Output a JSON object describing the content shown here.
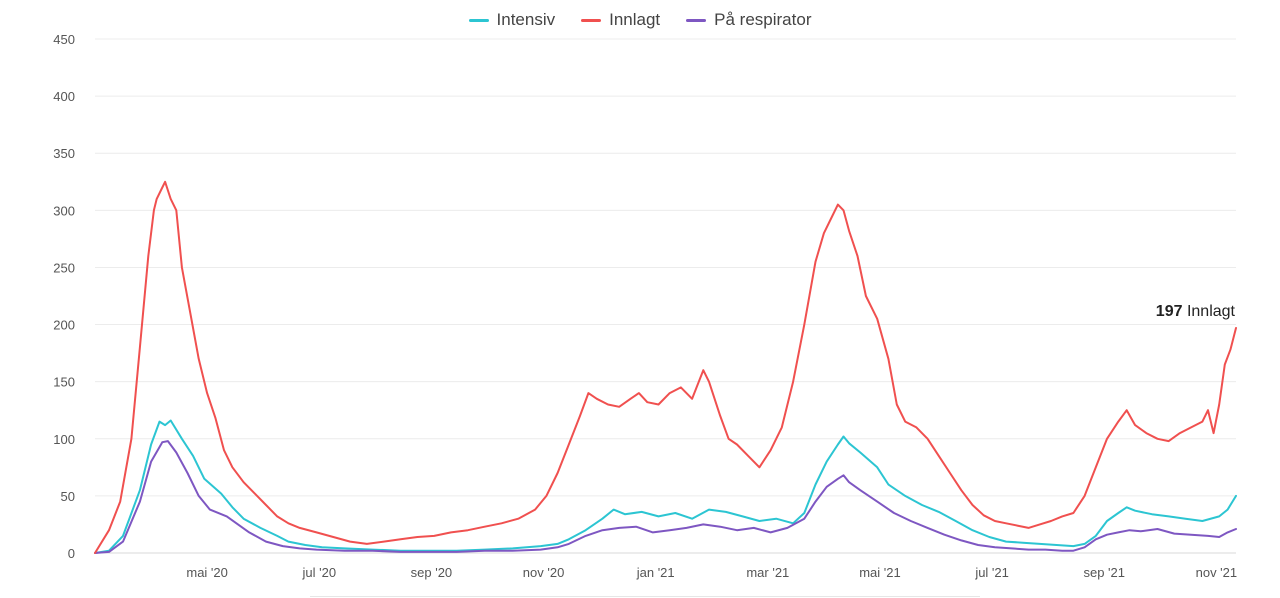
{
  "chart_data": {
    "type": "line",
    "title": "",
    "xlabel": "",
    "ylabel": "",
    "ylim": [
      0,
      450
    ],
    "yticks": [
      0,
      50,
      100,
      150,
      200,
      250,
      300,
      350,
      400,
      450
    ],
    "x_domain": [
      -0.45,
      19.9
    ],
    "x_ticks": [
      {
        "pos": 1.55,
        "label": "mai '20"
      },
      {
        "pos": 3.55,
        "label": "jul '20"
      },
      {
        "pos": 5.55,
        "label": "sep '20"
      },
      {
        "pos": 7.55,
        "label": "nov '20"
      },
      {
        "pos": 9.55,
        "label": "jan '21"
      },
      {
        "pos": 11.55,
        "label": "mar '21"
      },
      {
        "pos": 13.55,
        "label": "mai '21"
      },
      {
        "pos": 15.55,
        "label": "jul '21"
      },
      {
        "pos": 17.55,
        "label": "sep '21"
      },
      {
        "pos": 19.55,
        "label": "nov '21"
      }
    ],
    "grid": true,
    "legend_position": "top-center",
    "series": [
      {
        "name": "Intensiv",
        "color": "#2cc5d2",
        "points": [
          [
            -0.45,
            0
          ],
          [
            -0.2,
            2
          ],
          [
            0.05,
            15
          ],
          [
            0.35,
            55
          ],
          [
            0.55,
            95
          ],
          [
            0.7,
            115
          ],
          [
            0.8,
            112
          ],
          [
            0.9,
            116
          ],
          [
            1.1,
            100
          ],
          [
            1.3,
            85
          ],
          [
            1.5,
            65
          ],
          [
            1.8,
            52
          ],
          [
            2.0,
            40
          ],
          [
            2.2,
            30
          ],
          [
            2.5,
            22
          ],
          [
            2.8,
            15
          ],
          [
            3.0,
            10
          ],
          [
            3.3,
            7
          ],
          [
            3.6,
            5
          ],
          [
            4.0,
            4
          ],
          [
            4.5,
            3
          ],
          [
            5.0,
            2
          ],
          [
            5.5,
            2
          ],
          [
            6.0,
            2
          ],
          [
            6.5,
            3
          ],
          [
            7.0,
            4
          ],
          [
            7.5,
            6
          ],
          [
            7.8,
            8
          ],
          [
            8.0,
            12
          ],
          [
            8.3,
            20
          ],
          [
            8.6,
            30
          ],
          [
            8.8,
            38
          ],
          [
            9.0,
            34
          ],
          [
            9.3,
            36
          ],
          [
            9.6,
            32
          ],
          [
            9.9,
            35
          ],
          [
            10.2,
            30
          ],
          [
            10.5,
            38
          ],
          [
            10.8,
            36
          ],
          [
            11.1,
            32
          ],
          [
            11.4,
            28
          ],
          [
            11.7,
            30
          ],
          [
            12.0,
            26
          ],
          [
            12.2,
            35
          ],
          [
            12.4,
            60
          ],
          [
            12.6,
            80
          ],
          [
            12.8,
            95
          ],
          [
            12.9,
            102
          ],
          [
            13.0,
            96
          ],
          [
            13.2,
            88
          ],
          [
            13.5,
            75
          ],
          [
            13.7,
            60
          ],
          [
            14.0,
            50
          ],
          [
            14.3,
            42
          ],
          [
            14.6,
            36
          ],
          [
            14.9,
            28
          ],
          [
            15.2,
            20
          ],
          [
            15.5,
            14
          ],
          [
            15.8,
            10
          ],
          [
            16.1,
            9
          ],
          [
            16.4,
            8
          ],
          [
            16.7,
            7
          ],
          [
            17.0,
            6
          ],
          [
            17.2,
            8
          ],
          [
            17.4,
            15
          ],
          [
            17.6,
            28
          ],
          [
            17.8,
            35
          ],
          [
            17.95,
            40
          ],
          [
            18.1,
            37
          ],
          [
            18.4,
            34
          ],
          [
            18.7,
            32
          ],
          [
            19.0,
            30
          ],
          [
            19.3,
            28
          ],
          [
            19.6,
            32
          ],
          [
            19.75,
            38
          ],
          [
            19.9,
            50
          ]
        ]
      },
      {
        "name": "Innlagt",
        "color": "#f0504f",
        "points": [
          [
            -0.45,
            0
          ],
          [
            -0.2,
            20
          ],
          [
            0.0,
            45
          ],
          [
            0.2,
            100
          ],
          [
            0.35,
            180
          ],
          [
            0.5,
            260
          ],
          [
            0.6,
            300
          ],
          [
            0.65,
            310
          ],
          [
            0.75,
            320
          ],
          [
            0.8,
            325
          ],
          [
            0.9,
            310
          ],
          [
            1.0,
            300
          ],
          [
            1.1,
            250
          ],
          [
            1.25,
            210
          ],
          [
            1.4,
            170
          ],
          [
            1.55,
            140
          ],
          [
            1.7,
            118
          ],
          [
            1.85,
            90
          ],
          [
            2.0,
            75
          ],
          [
            2.2,
            62
          ],
          [
            2.4,
            52
          ],
          [
            2.6,
            42
          ],
          [
            2.8,
            32
          ],
          [
            3.0,
            26
          ],
          [
            3.2,
            22
          ],
          [
            3.5,
            18
          ],
          [
            3.8,
            14
          ],
          [
            4.1,
            10
          ],
          [
            4.4,
            8
          ],
          [
            4.7,
            10
          ],
          [
            5.0,
            12
          ],
          [
            5.3,
            14
          ],
          [
            5.6,
            15
          ],
          [
            5.9,
            18
          ],
          [
            6.2,
            20
          ],
          [
            6.5,
            23
          ],
          [
            6.8,
            26
          ],
          [
            7.1,
            30
          ],
          [
            7.4,
            38
          ],
          [
            7.6,
            50
          ],
          [
            7.8,
            70
          ],
          [
            8.0,
            95
          ],
          [
            8.2,
            120
          ],
          [
            8.35,
            140
          ],
          [
            8.5,
            135
          ],
          [
            8.7,
            130
          ],
          [
            8.9,
            128
          ],
          [
            9.1,
            135
          ],
          [
            9.25,
            140
          ],
          [
            9.4,
            132
          ],
          [
            9.6,
            130
          ],
          [
            9.8,
            140
          ],
          [
            10.0,
            145
          ],
          [
            10.2,
            135
          ],
          [
            10.4,
            160
          ],
          [
            10.5,
            150
          ],
          [
            10.7,
            120
          ],
          [
            10.85,
            100
          ],
          [
            11.0,
            95
          ],
          [
            11.2,
            85
          ],
          [
            11.4,
            75
          ],
          [
            11.6,
            90
          ],
          [
            11.8,
            110
          ],
          [
            12.0,
            150
          ],
          [
            12.2,
            200
          ],
          [
            12.4,
            255
          ],
          [
            12.55,
            280
          ],
          [
            12.7,
            295
          ],
          [
            12.8,
            305
          ],
          [
            12.9,
            300
          ],
          [
            13.0,
            282
          ],
          [
            13.15,
            260
          ],
          [
            13.3,
            225
          ],
          [
            13.5,
            205
          ],
          [
            13.7,
            170
          ],
          [
            13.85,
            130
          ],
          [
            14.0,
            115
          ],
          [
            14.2,
            110
          ],
          [
            14.4,
            100
          ],
          [
            14.6,
            85
          ],
          [
            14.8,
            70
          ],
          [
            15.0,
            55
          ],
          [
            15.2,
            42
          ],
          [
            15.4,
            33
          ],
          [
            15.6,
            28
          ],
          [
            15.8,
            26
          ],
          [
            16.0,
            24
          ],
          [
            16.2,
            22
          ],
          [
            16.4,
            25
          ],
          [
            16.6,
            28
          ],
          [
            16.8,
            32
          ],
          [
            17.0,
            35
          ],
          [
            17.2,
            50
          ],
          [
            17.4,
            75
          ],
          [
            17.6,
            100
          ],
          [
            17.8,
            115
          ],
          [
            17.95,
            125
          ],
          [
            18.1,
            112
          ],
          [
            18.3,
            105
          ],
          [
            18.5,
            100
          ],
          [
            18.7,
            98
          ],
          [
            18.9,
            105
          ],
          [
            19.1,
            110
          ],
          [
            19.3,
            115
          ],
          [
            19.4,
            125
          ],
          [
            19.5,
            105
          ],
          [
            19.6,
            130
          ],
          [
            19.7,
            165
          ],
          [
            19.8,
            178
          ],
          [
            19.9,
            197
          ]
        ]
      },
      {
        "name": "På respirator",
        "color": "#7e57c2",
        "points": [
          [
            -0.45,
            0
          ],
          [
            -0.2,
            1
          ],
          [
            0.05,
            10
          ],
          [
            0.35,
            45
          ],
          [
            0.55,
            80
          ],
          [
            0.75,
            97
          ],
          [
            0.85,
            98
          ],
          [
            1.0,
            88
          ],
          [
            1.2,
            70
          ],
          [
            1.4,
            50
          ],
          [
            1.6,
            38
          ],
          [
            1.9,
            32
          ],
          [
            2.1,
            25
          ],
          [
            2.3,
            18
          ],
          [
            2.6,
            10
          ],
          [
            2.9,
            6
          ],
          [
            3.2,
            4
          ],
          [
            3.5,
            3
          ],
          [
            4.0,
            2
          ],
          [
            4.5,
            2
          ],
          [
            5.0,
            1
          ],
          [
            5.5,
            1
          ],
          [
            6.0,
            1
          ],
          [
            6.5,
            2
          ],
          [
            7.0,
            2
          ],
          [
            7.5,
            3
          ],
          [
            7.8,
            5
          ],
          [
            8.0,
            8
          ],
          [
            8.3,
            15
          ],
          [
            8.6,
            20
          ],
          [
            8.9,
            22
          ],
          [
            9.2,
            23
          ],
          [
            9.5,
            18
          ],
          [
            9.8,
            20
          ],
          [
            10.1,
            22
          ],
          [
            10.4,
            25
          ],
          [
            10.7,
            23
          ],
          [
            11.0,
            20
          ],
          [
            11.3,
            22
          ],
          [
            11.6,
            18
          ],
          [
            11.9,
            22
          ],
          [
            12.2,
            30
          ],
          [
            12.4,
            45
          ],
          [
            12.6,
            58
          ],
          [
            12.8,
            65
          ],
          [
            12.9,
            68
          ],
          [
            13.0,
            62
          ],
          [
            13.2,
            55
          ],
          [
            13.5,
            45
          ],
          [
            13.8,
            35
          ],
          [
            14.1,
            28
          ],
          [
            14.4,
            22
          ],
          [
            14.7,
            16
          ],
          [
            15.0,
            11
          ],
          [
            15.3,
            7
          ],
          [
            15.6,
            5
          ],
          [
            15.9,
            4
          ],
          [
            16.2,
            3
          ],
          [
            16.5,
            3
          ],
          [
            16.8,
            2
          ],
          [
            17.0,
            2
          ],
          [
            17.2,
            5
          ],
          [
            17.4,
            12
          ],
          [
            17.6,
            16
          ],
          [
            17.8,
            18
          ],
          [
            18.0,
            20
          ],
          [
            18.2,
            19
          ],
          [
            18.5,
            21
          ],
          [
            18.8,
            17
          ],
          [
            19.1,
            16
          ],
          [
            19.4,
            15
          ],
          [
            19.6,
            14
          ],
          [
            19.75,
            18
          ],
          [
            19.9,
            21
          ]
        ]
      }
    ],
    "annotation": {
      "value": "197",
      "label": "Innlagt"
    }
  }
}
